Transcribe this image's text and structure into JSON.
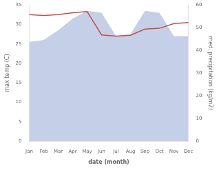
{
  "chart_data": {
    "type": "line",
    "categories": [
      "Jan",
      "Feb",
      "Mar",
      "Apr",
      "May",
      "Jun",
      "Jul",
      "Aug",
      "Sep",
      "Oct",
      "Nov",
      "Dec"
    ],
    "series": [
      {
        "type": "area",
        "color": "#c5cfe8",
        "values": [
          25.5,
          26.0,
          28.5,
          31.5,
          33.5,
          33.0,
          27.0,
          27.5,
          33.5,
          33.0,
          27.0,
          27.0
        ]
      },
      {
        "type": "line",
        "color": "#c0504d",
        "values": [
          32.5,
          32.3,
          32.5,
          33.0,
          33.3,
          27.3,
          27.0,
          27.2,
          28.8,
          29.0,
          30.2,
          30.5
        ]
      }
    ],
    "xlabel": "date (month)",
    "ylabel": "max temp (C)",
    "y2label": "med. precipitation (kg/m2)",
    "ylim": [
      0,
      35
    ],
    "yticks": [
      0,
      5,
      10,
      15,
      20,
      25,
      30,
      35
    ],
    "y2lim": [
      0,
      60
    ],
    "y2ticks": [
      0,
      10,
      20,
      30,
      40,
      50,
      60
    ],
    "grid": false
  }
}
